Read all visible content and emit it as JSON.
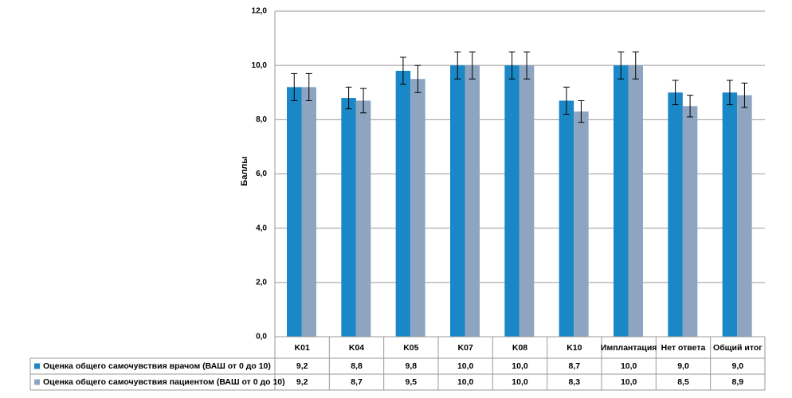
{
  "chart_data": {
    "type": "bar",
    "y_label": "Баллы",
    "categories": [
      "K01",
      "K04",
      "K05",
      "K07",
      "K08",
      "K10",
      "Имплантация",
      "Нет ответа",
      "Общий итог"
    ],
    "series": [
      {
        "name": "Оценка общего самочувствия врачом (ВАШ от 0 до 10)",
        "color": "#1a87c6",
        "values": [
          9.2,
          8.8,
          9.8,
          10.0,
          10.0,
          8.7,
          10.0,
          9.0,
          9.0
        ],
        "value_labels": [
          "9,2",
          "8,8",
          "9,8",
          "10,0",
          "10,0",
          "8,7",
          "10,0",
          "9,0",
          "9,0"
        ],
        "errors": [
          0.5,
          0.4,
          0.5,
          0.5,
          0.5,
          0.5,
          0.5,
          0.45,
          0.45
        ]
      },
      {
        "name": "Оценка общего самочувствия пациентом (ВАШ от 0 до 10)",
        "color": "#8da5c0",
        "values": [
          9.2,
          8.7,
          9.5,
          10.0,
          10.0,
          8.3,
          10.0,
          8.5,
          8.9
        ],
        "value_labels": [
          "9,2",
          "8,7",
          "9,5",
          "10,0",
          "10,0",
          "8,3",
          "10,0",
          "8,5",
          "8,9"
        ],
        "errors": [
          0.5,
          0.45,
          0.5,
          0.5,
          0.5,
          0.4,
          0.5,
          0.4,
          0.45
        ]
      }
    ],
    "ylim": [
      0,
      12
    ],
    "yticks": [
      {
        "value": 0,
        "label": "0,0"
      },
      {
        "value": 2,
        "label": "2,0"
      },
      {
        "value": 4,
        "label": "4,0"
      },
      {
        "value": 6,
        "label": "6,0"
      },
      {
        "value": 8,
        "label": "8,0"
      },
      {
        "value": 10,
        "label": "10,0"
      },
      {
        "value": 12,
        "label": "12,0"
      }
    ],
    "grid": true
  }
}
